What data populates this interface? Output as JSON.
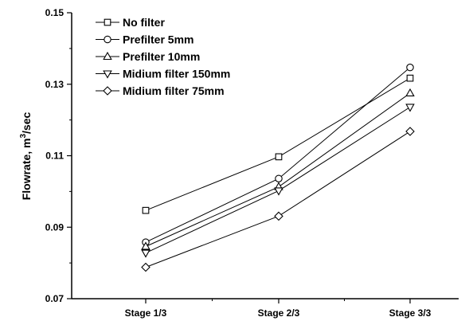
{
  "chart_data": {
    "type": "line",
    "categories": [
      "Stage 1/3",
      "Stage 2/3",
      "Stage 3/3"
    ],
    "ylabel": "Flowrate, m³/sec",
    "ylabel_main": "Flowrate, m",
    "ylabel_sup": "3",
    "ylabel_tail": "/sec",
    "xlabel": "",
    "title": "",
    "ylim": [
      0.07,
      0.15
    ],
    "yticks": [
      0.07,
      0.09,
      0.11,
      0.13,
      0.15
    ],
    "ytick_labels": [
      "0.07",
      "0.09",
      "0.11",
      "0.13",
      "0.15"
    ],
    "grid": false,
    "legend": "top-left",
    "series": [
      {
        "name": "No filter",
        "marker": "square",
        "values": [
          0.0947,
          0.1097,
          0.1317
        ]
      },
      {
        "name": "Prefilter 5mm",
        "marker": "circle",
        "values": [
          0.0858,
          0.1036,
          0.1347
        ]
      },
      {
        "name": "Prefilter 10mm",
        "marker": "triangle-up",
        "values": [
          0.0846,
          0.1013,
          0.1275
        ]
      },
      {
        "name": "Midium filter 150mm",
        "marker": "triangle-down",
        "values": [
          0.0828,
          0.1002,
          0.1236
        ]
      },
      {
        "name": "Midium filter 75mm",
        "marker": "diamond",
        "values": [
          0.0788,
          0.0931,
          0.1168
        ]
      }
    ],
    "line_color": "#000000"
  }
}
